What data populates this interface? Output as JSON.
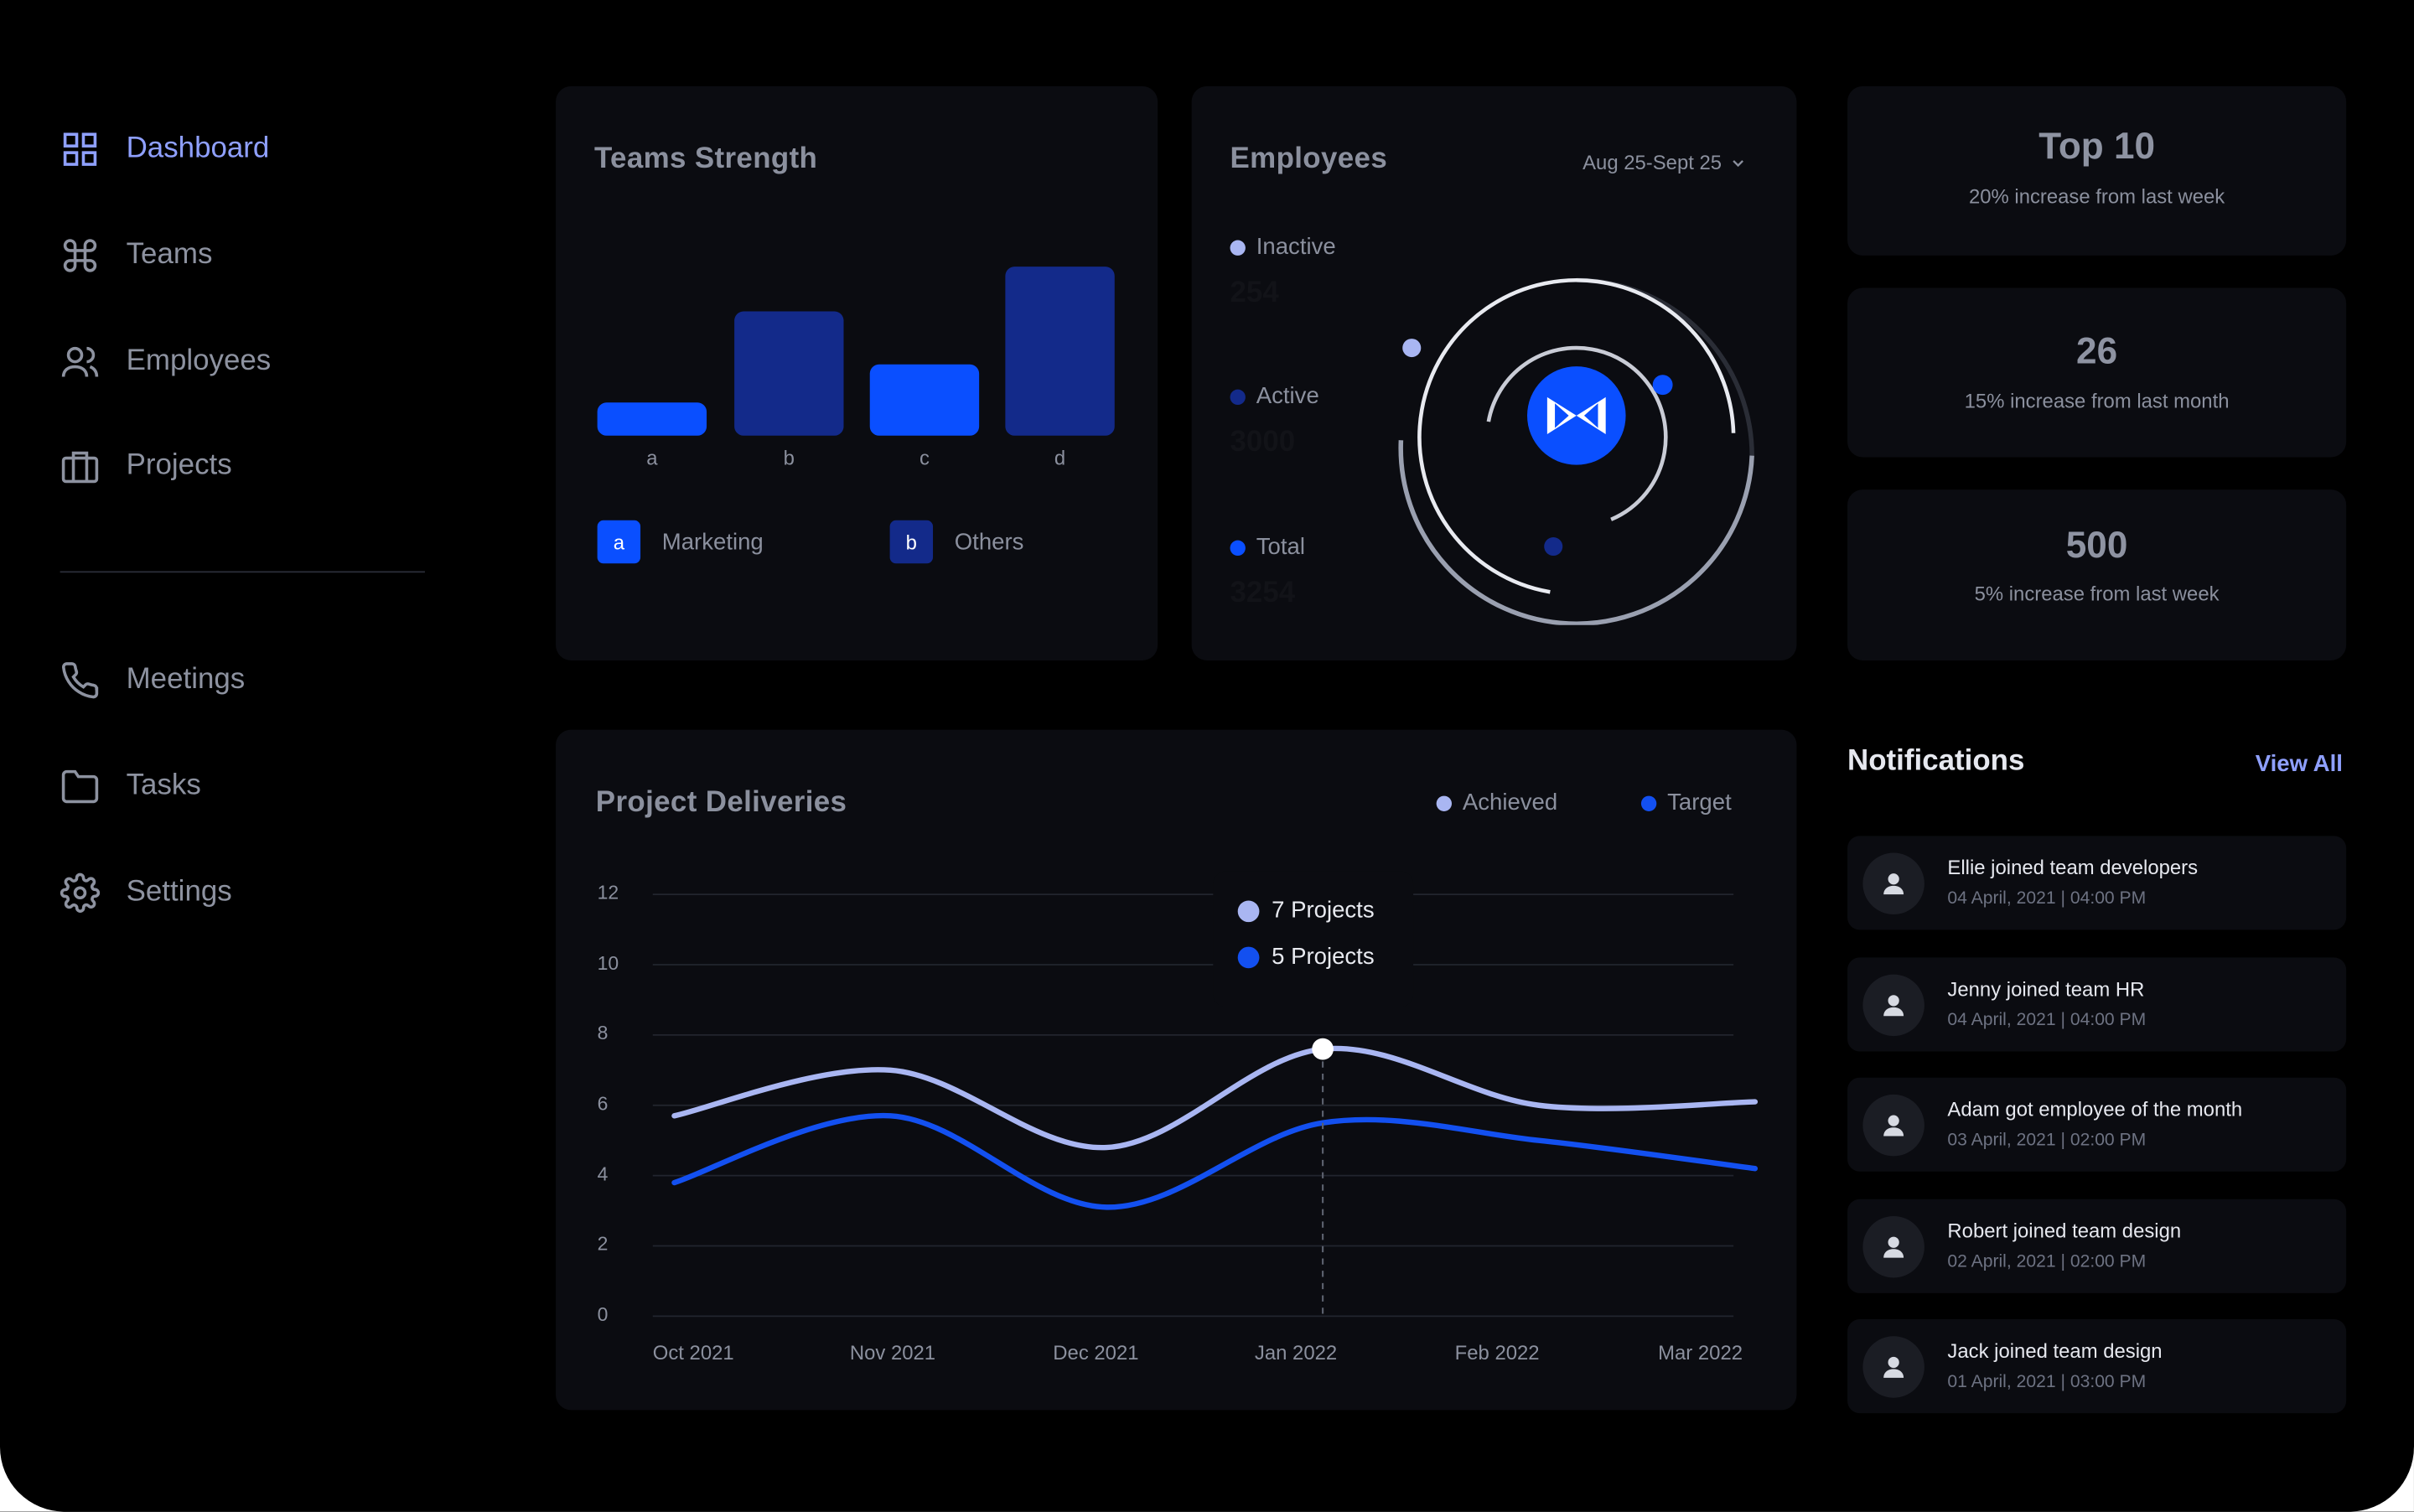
{
  "sidebar": {
    "items": [
      {
        "label": "Dashboard",
        "icon": "grid-icon"
      },
      {
        "label": "Teams",
        "icon": "command-icon"
      },
      {
        "label": "Employees",
        "icon": "users-icon"
      },
      {
        "label": "Projects",
        "icon": "briefcase-icon"
      },
      {
        "label": "Meetings",
        "icon": "phone-icon"
      },
      {
        "label": "Tasks",
        "icon": "folder-icon"
      },
      {
        "label": "Settings",
        "icon": "gear-icon"
      }
    ]
  },
  "teams_strength": {
    "title": "Teams Strength",
    "legend": [
      {
        "key": "a",
        "label": "Marketing"
      },
      {
        "key": "b",
        "label": "Others"
      }
    ]
  },
  "employees": {
    "title": "Employees",
    "date_range": "Aug 25-Sept 25",
    "stats": [
      {
        "label": "Inactive",
        "value": "254"
      },
      {
        "label": "Active",
        "value": "3000"
      },
      {
        "label": "Total",
        "value": "3254"
      }
    ]
  },
  "stats": [
    {
      "title": "Top 10",
      "subtitle": "20% increase from last week"
    },
    {
      "title": "26",
      "subtitle": "15% increase from last month"
    },
    {
      "title": "500",
      "subtitle": "5% increase from last week"
    }
  ],
  "deliveries": {
    "title": "Project Deliveries",
    "legend": [
      "Achieved",
      "Target"
    ],
    "tooltip": [
      "7 Projects",
      "5 Projects"
    ]
  },
  "notifications": {
    "title": "Notifications",
    "view_all": "View All",
    "items": [
      {
        "title": "Ellie joined team developers",
        "time": "04 April, 2021 | 04:00 PM"
      },
      {
        "title": "Jenny joined team HR",
        "time": "04 April, 2021 | 04:00 PM"
      },
      {
        "title": "Adam got employee of the month",
        "time": "03 April, 2021 | 02:00 PM"
      },
      {
        "title": "Robert joined team design",
        "time": "02 April, 2021 | 02:00 PM"
      },
      {
        "title": "Jack joined team design",
        "time": "01 April, 2021 | 03:00 PM"
      }
    ]
  },
  "colors": {
    "accent": "#8fa0ff",
    "bright_blue": "#0a4fff",
    "dark_blue": "#132a8a",
    "achieved": "#a9b6f2",
    "target": "#1350f0"
  },
  "chart_data": [
    {
      "type": "bar",
      "categories": [
        "a",
        "b",
        "c",
        "d"
      ],
      "values": [
        2,
        7.5,
        4.3,
        10.2
      ],
      "legend": [
        "Marketing",
        "Others"
      ],
      "ylim": [
        0,
        10.5
      ]
    },
    {
      "type": "line",
      "x": [
        "Oct 2021",
        "Nov 2021",
        "Dec 2021",
        "Jan 2022",
        "Feb 2022",
        "Mar 2022"
      ],
      "yticks": [
        0,
        2,
        4,
        6,
        8,
        10,
        12
      ],
      "ylim": [
        0,
        12
      ],
      "series": [
        {
          "name": "Achieved",
          "values": [
            5.7,
            7.0,
            4.8,
            7.6,
            6.0,
            6.1
          ]
        },
        {
          "name": "Target",
          "values": [
            3.8,
            5.7,
            3.1,
            5.5,
            5.0,
            4.2
          ]
        }
      ]
    }
  ]
}
